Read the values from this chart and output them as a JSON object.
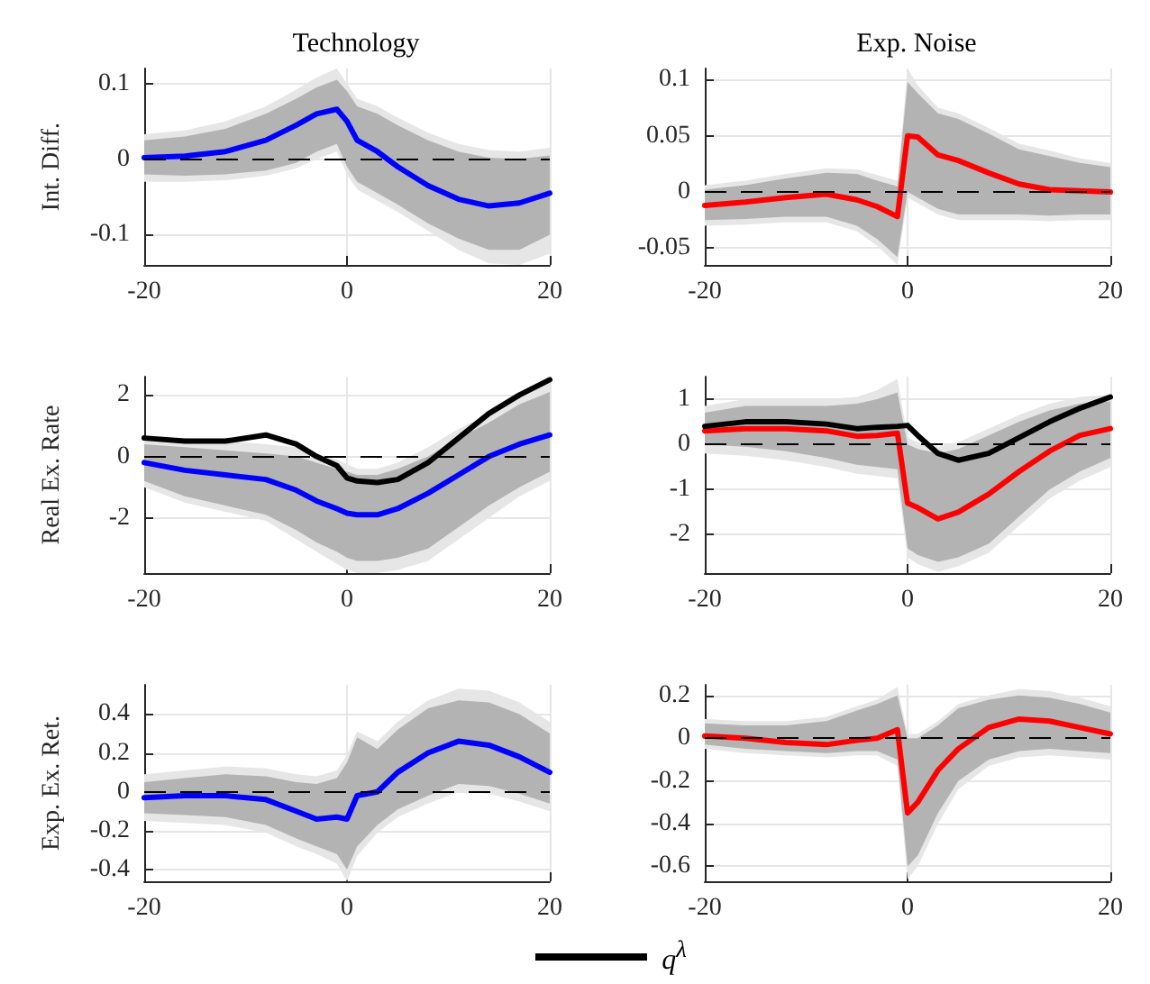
{
  "chart_data": [
    {
      "type": "line",
      "title": "Technology",
      "ylabel": "Int. Diff.",
      "x": [
        -20,
        -16,
        -12,
        -8,
        -5,
        -3,
        -1,
        0,
        1,
        3,
        5,
        8,
        11,
        14,
        17,
        20
      ],
      "xlim": [
        -20,
        20
      ],
      "xticks": [
        -20,
        0,
        20
      ],
      "ylim": [
        -0.14,
        0.12
      ],
      "yticks": [
        -0.1,
        0,
        0.1
      ],
      "grid": true,
      "ref_lines": [
        {
          "axis": "y",
          "value": 0,
          "line_style": "dashed",
          "color": "#000000"
        }
      ],
      "series": [
        {
          "color": "#e6e6e6",
          "values": [
            null,
            null,
            null,
            null,
            null,
            null,
            null,
            null,
            null,
            null,
            null,
            null,
            null,
            null,
            null,
            null
          ],
          "lower": [
            -0.03,
            -0.03,
            -0.028,
            -0.022,
            -0.012,
            0.0,
            0.01,
            -0.02,
            -0.04,
            -0.055,
            -0.07,
            -0.095,
            -0.12,
            -0.138,
            -0.14,
            -0.125
          ],
          "upper": [
            0.033,
            0.038,
            0.05,
            0.07,
            0.092,
            0.108,
            0.12,
            0.1,
            0.08,
            0.07,
            0.055,
            0.035,
            0.02,
            0.012,
            0.01,
            0.015
          ]
        },
        {
          "color": "#b3b3b3",
          "values": [
            null,
            null,
            null,
            null,
            null,
            null,
            null,
            null,
            null,
            null,
            null,
            null,
            null,
            null,
            null,
            null
          ],
          "lower": [
            -0.02,
            -0.022,
            -0.02,
            -0.015,
            -0.005,
            0.01,
            0.02,
            -0.01,
            -0.03,
            -0.045,
            -0.06,
            -0.085,
            -0.105,
            -0.12,
            -0.12,
            -0.1
          ],
          "upper": [
            0.025,
            0.03,
            0.04,
            0.06,
            0.08,
            0.095,
            0.105,
            0.09,
            0.07,
            0.06,
            0.045,
            0.025,
            0.01,
            0.002,
            0.0,
            0.005
          ]
        },
        {
          "color": "#0000ff",
          "values": [
            0.002,
            0.004,
            0.01,
            0.025,
            0.045,
            0.06,
            0.066,
            0.05,
            0.025,
            0.01,
            -0.01,
            -0.035,
            -0.053,
            -0.062,
            -0.058,
            -0.045
          ]
        }
      ]
    },
    {
      "type": "line",
      "title": "Exp. Noise",
      "x": [
        -20,
        -16,
        -12,
        -8,
        -5,
        -3,
        -1,
        0,
        1,
        3,
        5,
        8,
        11,
        14,
        17,
        20
      ],
      "xlim": [
        -20,
        20
      ],
      "xticks": [
        -20,
        0,
        20
      ],
      "ylim": [
        -0.065,
        0.11
      ],
      "yticks": [
        -0.05,
        0,
        0.05,
        0.1
      ],
      "grid": true,
      "ref_lines": [
        {
          "axis": "y",
          "value": 0,
          "line_style": "dashed",
          "color": "#000000"
        }
      ],
      "series": [
        {
          "color": "#e6e6e6",
          "values": [
            null,
            null,
            null,
            null,
            null,
            null,
            null,
            null,
            null,
            null,
            null,
            null,
            null,
            null,
            null,
            null
          ],
          "lower": [
            -0.03,
            -0.029,
            -0.027,
            -0.027,
            -0.035,
            -0.048,
            -0.065,
            -0.005,
            -0.01,
            -0.02,
            -0.025,
            -0.025,
            -0.025,
            -0.026,
            -0.025,
            -0.025
          ],
          "upper": [
            0.006,
            0.01,
            0.016,
            0.021,
            0.02,
            0.015,
            0.01,
            0.11,
            0.095,
            0.075,
            0.07,
            0.057,
            0.043,
            0.037,
            0.03,
            0.026
          ]
        },
        {
          "color": "#b3b3b3",
          "values": [
            null,
            null,
            null,
            null,
            null,
            null,
            null,
            null,
            null,
            null,
            null,
            null,
            null,
            null,
            null,
            null
          ],
          "lower": [
            -0.025,
            -0.024,
            -0.022,
            -0.022,
            -0.03,
            -0.042,
            -0.058,
            0.0,
            -0.005,
            -0.015,
            -0.02,
            -0.02,
            -0.02,
            -0.021,
            -0.02,
            -0.02
          ],
          "upper": [
            0.002,
            0.006,
            0.012,
            0.017,
            0.016,
            0.01,
            0.005,
            0.098,
            0.088,
            0.07,
            0.065,
            0.052,
            0.038,
            0.032,
            0.026,
            0.022
          ]
        },
        {
          "color": "#ff0000",
          "values": [
            -0.012,
            -0.009,
            -0.005,
            -0.002,
            -0.007,
            -0.013,
            -0.022,
            0.05,
            0.049,
            0.033,
            0.028,
            0.017,
            0.007,
            0.002,
            0.001,
            0.0
          ]
        }
      ]
    },
    {
      "type": "line",
      "ylabel": "Real Ex. Rate",
      "legend": "bottom",
      "x": [
        -20,
        -16,
        -12,
        -8,
        -5,
        -3,
        -1,
        0,
        1,
        3,
        5,
        8,
        11,
        14,
        17,
        20
      ],
      "xlim": [
        -20,
        20
      ],
      "xticks": [
        -20,
        0,
        20
      ],
      "ylim": [
        -3.8,
        2.6
      ],
      "yticks": [
        -2,
        0,
        2
      ],
      "grid": true,
      "ref_lines": [
        {
          "axis": "y",
          "value": 0,
          "line_style": "dashed",
          "color": "#000000"
        }
      ],
      "series": [
        {
          "color": "#e6e6e6",
          "values": [
            null,
            null,
            null,
            null,
            null,
            null,
            null,
            null,
            null,
            null,
            null,
            null,
            null,
            null,
            null,
            null
          ],
          "lower": [
            -1.0,
            -1.5,
            -1.8,
            -2.1,
            -2.7,
            -3.1,
            -3.5,
            -3.7,
            -3.8,
            -3.8,
            -3.7,
            -3.4,
            -2.7,
            -2.0,
            -1.3,
            -0.8
          ],
          "upper": [
            0.6,
            0.6,
            0.5,
            0.4,
            0.3,
            0.1,
            -0.1,
            -0.25,
            -0.4,
            -0.4,
            -0.2,
            0.3,
            0.9,
            1.4,
            2.0,
            2.4
          ]
        },
        {
          "color": "#b3b3b3",
          "values": [
            null,
            null,
            null,
            null,
            null,
            null,
            null,
            null,
            null,
            null,
            null,
            null,
            null,
            null,
            null,
            null
          ],
          "lower": [
            -0.8,
            -1.3,
            -1.6,
            -1.9,
            -2.4,
            -2.8,
            -3.1,
            -3.3,
            -3.4,
            -3.4,
            -3.3,
            -3.0,
            -2.3,
            -1.6,
            -1.0,
            -0.5
          ],
          "upper": [
            0.4,
            0.3,
            0.2,
            0.1,
            0.0,
            -0.2,
            -0.4,
            -0.5,
            -0.6,
            -0.6,
            -0.4,
            0.0,
            0.6,
            1.1,
            1.7,
            2.1
          ]
        },
        {
          "color": "#0000ff",
          "values": [
            -0.2,
            -0.45,
            -0.6,
            -0.75,
            -1.1,
            -1.45,
            -1.7,
            -1.85,
            -1.9,
            -1.9,
            -1.7,
            -1.2,
            -0.6,
            0.0,
            0.4,
            0.7
          ]
        },
        {
          "name": "q$^{λ}$",
          "color": "#000000",
          "values": [
            0.6,
            0.5,
            0.5,
            0.7,
            0.4,
            0.0,
            -0.3,
            -0.7,
            -0.8,
            -0.85,
            -0.75,
            -0.2,
            0.6,
            1.4,
            2.0,
            2.5
          ]
        }
      ]
    },
    {
      "type": "line",
      "legend": "bottom",
      "x": [
        -20,
        -16,
        -12,
        -8,
        -5,
        -3,
        -1,
        0,
        1,
        3,
        5,
        8,
        11,
        14,
        17,
        20
      ],
      "xlim": [
        -20,
        20
      ],
      "xticks": [
        -20,
        0,
        20
      ],
      "ylim": [
        -2.85,
        1.5
      ],
      "yticks": [
        -2,
        -1,
        0,
        1
      ],
      "grid": true,
      "ref_lines": [
        {
          "axis": "y",
          "value": 0,
          "line_style": "dashed",
          "color": "#000000"
        }
      ],
      "series": [
        {
          "color": "#e6e6e6",
          "values": [
            null,
            null,
            null,
            null,
            null,
            null,
            null,
            null,
            null,
            null,
            null,
            null,
            null,
            null,
            null,
            null
          ],
          "lower": [
            -0.2,
            -0.25,
            -0.35,
            -0.5,
            -0.65,
            -0.7,
            -0.75,
            -2.5,
            -2.65,
            -2.82,
            -2.7,
            -2.4,
            -1.8,
            -1.2,
            -0.8,
            -0.5
          ],
          "upper": [
            0.85,
            1.0,
            1.0,
            1.0,
            1.05,
            1.2,
            1.45,
            0.15,
            0.05,
            -0.05,
            0.05,
            0.35,
            0.65,
            0.9,
            1.05,
            1.1
          ]
        },
        {
          "color": "#b3b3b3",
          "values": [
            null,
            null,
            null,
            null,
            null,
            null,
            null,
            null,
            null,
            null,
            null,
            null,
            null,
            null,
            null,
            null
          ],
          "lower": [
            0.0,
            -0.05,
            -0.15,
            -0.3,
            -0.45,
            -0.5,
            -0.55,
            -2.3,
            -2.45,
            -2.6,
            -2.5,
            -2.2,
            -1.6,
            -1.0,
            -0.6,
            -0.3
          ],
          "upper": [
            0.7,
            0.85,
            0.85,
            0.85,
            0.9,
            1.0,
            1.15,
            0.0,
            -0.1,
            -0.2,
            -0.1,
            0.2,
            0.5,
            0.75,
            0.9,
            0.95
          ]
        },
        {
          "color": "#ff0000",
          "values": [
            0.3,
            0.35,
            0.35,
            0.3,
            0.18,
            0.2,
            0.25,
            -1.3,
            -1.4,
            -1.65,
            -1.5,
            -1.1,
            -0.6,
            -0.15,
            0.2,
            0.35
          ]
        },
        {
          "name": "q$^{λ}$",
          "color": "#000000",
          "values": [
            0.4,
            0.5,
            0.5,
            0.45,
            0.35,
            0.38,
            0.4,
            0.42,
            0.2,
            -0.2,
            -0.35,
            -0.2,
            0.15,
            0.5,
            0.8,
            1.05
          ]
        }
      ]
    },
    {
      "type": "line",
      "ylabel": "Exp. Ex. Ret.",
      "x": [
        -20,
        -16,
        -12,
        -8,
        -5,
        -3,
        -1,
        0,
        1,
        3,
        5,
        8,
        11,
        14,
        17,
        20
      ],
      "xlim": [
        -20,
        20
      ],
      "xticks": [
        -20,
        0,
        20
      ],
      "ylim": [
        -0.46,
        0.55
      ],
      "yticks": [
        -0.4,
        -0.2,
        0,
        0.2,
        0.4
      ],
      "grid": true,
      "ref_lines": [
        {
          "axis": "y",
          "value": 0,
          "line_style": "dashed",
          "color": "#000000"
        }
      ],
      "series": [
        {
          "color": "#e6e6e6",
          "values": [
            null,
            null,
            null,
            null,
            null,
            null,
            null,
            null,
            null,
            null,
            null,
            null,
            null,
            null,
            null,
            null
          ],
          "lower": [
            -0.15,
            -0.16,
            -0.17,
            -0.21,
            -0.28,
            -0.32,
            -0.37,
            -0.46,
            -0.33,
            -0.21,
            -0.13,
            -0.06,
            0.0,
            -0.01,
            -0.05,
            -0.1
          ],
          "upper": [
            0.09,
            0.11,
            0.13,
            0.12,
            0.09,
            0.08,
            0.11,
            0.19,
            0.31,
            0.26,
            0.36,
            0.47,
            0.53,
            0.52,
            0.46,
            0.36
          ]
        },
        {
          "color": "#b3b3b3",
          "values": [
            null,
            null,
            null,
            null,
            null,
            null,
            null,
            null,
            null,
            null,
            null,
            null,
            null,
            null,
            null,
            null
          ],
          "lower": [
            -0.11,
            -0.12,
            -0.13,
            -0.17,
            -0.24,
            -0.28,
            -0.32,
            -0.4,
            -0.28,
            -0.17,
            -0.09,
            -0.02,
            0.04,
            0.03,
            -0.01,
            -0.06
          ],
          "upper": [
            0.05,
            0.07,
            0.09,
            0.08,
            0.05,
            0.04,
            0.07,
            0.15,
            0.28,
            0.22,
            0.32,
            0.43,
            0.47,
            0.46,
            0.4,
            0.3
          ]
        },
        {
          "color": "#0000ff",
          "values": [
            -0.03,
            -0.02,
            -0.02,
            -0.04,
            -0.1,
            -0.14,
            -0.13,
            -0.14,
            -0.02,
            0.0,
            0.1,
            0.2,
            0.26,
            0.24,
            0.18,
            0.1
          ]
        }
      ]
    },
    {
      "type": "line",
      "x": [
        -20,
        -16,
        -12,
        -8,
        -5,
        -3,
        -1,
        0,
        1,
        3,
        5,
        8,
        11,
        14,
        17,
        20
      ],
      "xlim": [
        -20,
        20
      ],
      "xticks": [
        -20,
        0,
        20
      ],
      "ylim": [
        -0.67,
        0.25
      ],
      "yticks": [
        -0.6,
        -0.4,
        -0.2,
        0,
        0.2
      ],
      "grid": true,
      "ref_lines": [
        {
          "axis": "y",
          "value": 0,
          "line_style": "dashed",
          "color": "#000000"
        }
      ],
      "series": [
        {
          "color": "#e6e6e6",
          "values": [
            null,
            null,
            null,
            null,
            null,
            null,
            null,
            null,
            null,
            null,
            null,
            null,
            null,
            null,
            null,
            null
          ],
          "lower": [
            -0.05,
            -0.07,
            -0.08,
            -0.09,
            -0.08,
            -0.08,
            -0.13,
            -0.66,
            -0.6,
            -0.4,
            -0.24,
            -0.13,
            -0.09,
            -0.08,
            -0.09,
            -0.1
          ],
          "upper": [
            0.09,
            0.08,
            0.08,
            0.1,
            0.15,
            0.18,
            0.24,
            0.02,
            0.02,
            0.08,
            0.16,
            0.2,
            0.23,
            0.22,
            0.19,
            0.15
          ]
        },
        {
          "color": "#b3b3b3",
          "values": [
            null,
            null,
            null,
            null,
            null,
            null,
            null,
            null,
            null,
            null,
            null,
            null,
            null,
            null,
            null,
            null
          ],
          "lower": [
            -0.03,
            -0.05,
            -0.06,
            -0.07,
            -0.06,
            -0.06,
            -0.1,
            -0.6,
            -0.55,
            -0.35,
            -0.2,
            -0.1,
            -0.06,
            -0.05,
            -0.06,
            -0.07
          ],
          "upper": [
            0.07,
            0.06,
            0.06,
            0.08,
            0.13,
            0.16,
            0.2,
            0.0,
            0.0,
            0.06,
            0.14,
            0.18,
            0.2,
            0.19,
            0.16,
            0.12
          ]
        },
        {
          "color": "#ff0000",
          "values": [
            0.01,
            0.0,
            -0.02,
            -0.03,
            -0.01,
            0.0,
            0.04,
            -0.35,
            -0.3,
            -0.15,
            -0.05,
            0.05,
            0.09,
            0.08,
            0.05,
            0.02
          ]
        }
      ]
    }
  ]
}
